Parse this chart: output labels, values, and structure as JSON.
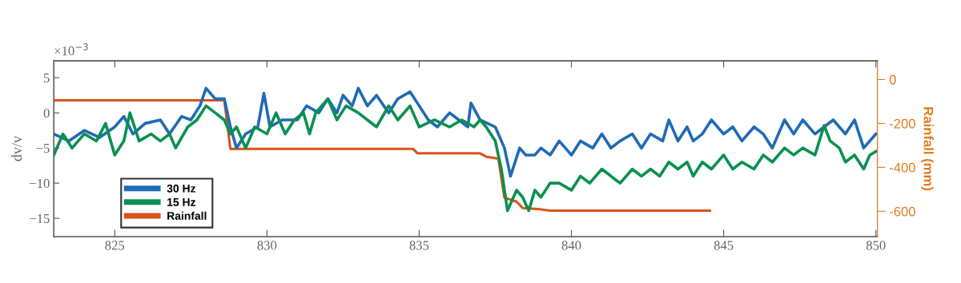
{
  "chart_data": {
    "type": "line",
    "ylabel": "dv/v",
    "y2label": "Rainfall (mm)",
    "annotations": [
      "×10$^{−3}$"
    ],
    "xlim": [
      823,
      850.05
    ],
    "xticks": [
      825,
      830,
      835,
      840,
      845,
      850
    ],
    "ylim": [
      -17.6,
      7.4
    ],
    "yticks": [
      {
        "value": -15,
        "label": "−15"
      },
      {
        "value": -10,
        "label": "−10"
      },
      {
        "value": -5,
        "label": "−5"
      },
      0,
      5
    ],
    "y2lim": [
      -715,
      85
    ],
    "y2ticks": [
      {
        "value": -600,
        "label": "-600"
      },
      {
        "value": -400,
        "label": "-400"
      },
      {
        "value": -200,
        "label": "-200"
      },
      0
    ],
    "grid": false,
    "legend": "bottom left",
    "line_style": "solid",
    "marker": "none",
    "series": [
      {
        "name": "30 Hz",
        "color": "#1f6bb5",
        "x": [
          823.0,
          823.5,
          824.0,
          824.5,
          825.0,
          825.3,
          825.6,
          826.0,
          826.5,
          826.8,
          827.2,
          827.5,
          827.8,
          828.0,
          828.3,
          828.6,
          828.8,
          829.0,
          829.3,
          829.7,
          829.9,
          830.1,
          830.5,
          831.0,
          831.3,
          831.7,
          832.0,
          832.3,
          832.5,
          832.8,
          833.0,
          833.3,
          833.6,
          834.0,
          834.3,
          834.7,
          835.0,
          835.3,
          835.6,
          836.0,
          836.3,
          836.6,
          836.7,
          837.0,
          837.5,
          837.8,
          838.0,
          838.3,
          838.5,
          838.8,
          839.0,
          839.3,
          839.6,
          840.0,
          840.3,
          840.7,
          841.0,
          841.3,
          841.6,
          842.0,
          842.3,
          842.6,
          843.0,
          843.2,
          843.5,
          843.8,
          844.0,
          844.3,
          844.6,
          845.0,
          845.3,
          845.6,
          846.0,
          846.3,
          846.6,
          847.0,
          847.3,
          847.6,
          848.0,
          848.3,
          848.6,
          849.0,
          849.3,
          849.6,
          850.0
        ],
        "values": [
          -3,
          -4,
          -2.5,
          -3.5,
          -2,
          -0.5,
          -3,
          -1.5,
          -1,
          -3,
          -0.5,
          -1,
          1,
          3.5,
          2,
          2,
          -2,
          -5,
          -3,
          -2,
          2.8,
          -2,
          -1,
          -1,
          1,
          0,
          2,
          0,
          2.5,
          1,
          3.5,
          1,
          2.5,
          0,
          2,
          3,
          1,
          -1,
          -2,
          0,
          -1,
          -2,
          1.4,
          -1,
          -2,
          -5,
          -9,
          -5,
          -6,
          -6,
          -5,
          -6,
          -4,
          -6,
          -4,
          -5,
          -3,
          -5,
          -4,
          -3,
          -5,
          -3,
          -4,
          -1,
          -4,
          -2,
          -4,
          -3,
          -1,
          -3,
          -2,
          -4,
          -2,
          -3,
          -5,
          -1,
          -3,
          -1,
          -3,
          -2,
          -1,
          -3,
          -1,
          -5,
          -3
        ]
      },
      {
        "name": "15 Hz",
        "color": "#0a9150",
        "x": [
          823.0,
          823.3,
          823.6,
          824.0,
          824.4,
          824.7,
          825.0,
          825.3,
          825.5,
          825.8,
          826.2,
          826.5,
          826.8,
          827.0,
          827.4,
          827.7,
          828.0,
          828.3,
          828.6,
          828.8,
          829.0,
          829.3,
          829.6,
          830.0,
          830.3,
          830.6,
          830.9,
          831.2,
          831.4,
          831.6,
          832.0,
          832.3,
          832.6,
          833.0,
          833.3,
          833.6,
          834.0,
          834.3,
          834.7,
          835.0,
          835.5,
          836.0,
          836.4,
          836.8,
          837.0,
          837.2,
          837.5,
          837.7,
          837.9,
          838.2,
          838.4,
          838.6,
          838.8,
          839.0,
          839.3,
          839.6,
          840.0,
          840.3,
          840.6,
          841.0,
          841.3,
          841.6,
          842.0,
          842.3,
          842.6,
          842.9,
          843.2,
          843.5,
          843.8,
          844.0,
          844.3,
          844.6,
          845.0,
          845.3,
          845.6,
          846.0,
          846.3,
          846.6,
          847.0,
          847.3,
          847.6,
          848.0,
          848.3,
          848.5,
          848.8,
          849.0,
          849.3,
          849.6,
          849.8,
          850.0
        ],
        "values": [
          -6,
          -3,
          -5,
          -3,
          -4,
          -1.5,
          -6,
          -4,
          0,
          -4,
          -3,
          -4,
          -3,
          -5,
          -2,
          -1,
          1,
          0,
          -1,
          -3,
          -2,
          -5,
          -2,
          -3,
          0,
          -3,
          -1,
          0,
          -3,
          0,
          2,
          -1,
          1,
          0,
          -1,
          -2,
          1,
          -1,
          1,
          -2,
          -1,
          -2,
          -1,
          -2,
          -1,
          -2,
          -4,
          -8,
          -13.9,
          -11,
          -12,
          -13.9,
          -11,
          -12,
          -10,
          -10,
          -11,
          -9,
          -10,
          -8,
          -9,
          -10,
          -8,
          -9,
          -8,
          -9,
          -7,
          -8,
          -7,
          -9,
          -7,
          -8,
          -6,
          -8,
          -7,
          -8,
          -6,
          -7,
          -5,
          -6,
          -5,
          -6,
          -1.8,
          -4,
          -5,
          -7,
          -6,
          -8,
          -6,
          -5.5
        ]
      },
      {
        "name": "Rainfall",
        "color": "#d95319",
        "axis": "y2",
        "x": [
          823.0,
          828.6,
          828.8,
          834.8,
          834.95,
          837.0,
          837.2,
          837.6,
          837.8,
          838.2,
          838.4,
          838.9,
          839.3,
          844.55
        ],
        "values": [
          -95,
          -95,
          -316,
          -316,
          -336,
          -336,
          -351,
          -360,
          -538,
          -556,
          -585,
          -590,
          -597,
          -597
        ]
      }
    ]
  }
}
